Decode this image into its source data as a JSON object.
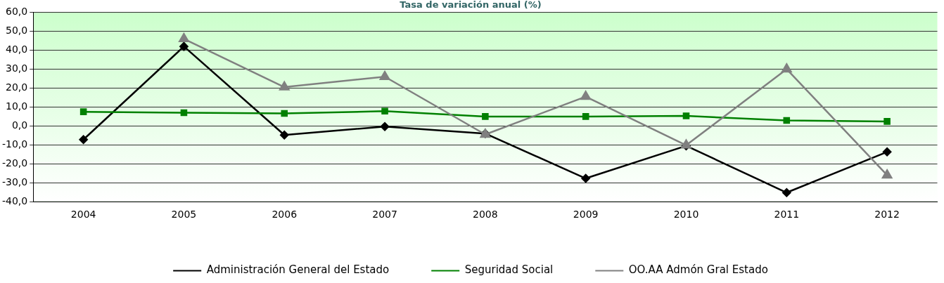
{
  "chart_data": {
    "type": "line",
    "title": "Tasa de variación anual (%)",
    "categories": [
      "2004",
      "2005",
      "2006",
      "2007",
      "2008",
      "2009",
      "2010",
      "2011",
      "2012"
    ],
    "series": [
      {
        "name": "Administración General del Estado",
        "color": "#000000",
        "marker": "diamond",
        "values": [
          -7.2,
          42.0,
          -4.8,
          -0.3,
          -4.0,
          -27.7,
          -10.5,
          -35.2,
          -13.7
        ]
      },
      {
        "name": "Seguridad Social",
        "color": "#008000",
        "marker": "square",
        "values": [
          7.5,
          7.0,
          6.6,
          7.8,
          5.0,
          5.0,
          5.3,
          2.9,
          2.4
        ]
      },
      {
        "name": "OO.AA Admón Gral Estado",
        "color": "#808080",
        "marker": "triangle",
        "values": [
          null,
          46.0,
          20.5,
          26.0,
          -4.5,
          15.5,
          -10.2,
          30.0,
          -26.0
        ]
      }
    ],
    "ylim": [
      -40,
      60
    ],
    "yticks": [
      {
        "value": -40,
        "label": "-40,0"
      },
      {
        "value": -30,
        "label": "-30,0"
      },
      {
        "value": -20,
        "label": "-20,0"
      },
      {
        "value": -10,
        "label": "-10,0"
      },
      {
        "value": 0,
        "label": "0,0"
      },
      {
        "value": 10,
        "label": "10,0"
      },
      {
        "value": 20,
        "label": "20,0"
      },
      {
        "value": 30,
        "label": "30,0"
      },
      {
        "value": 40,
        "label": "40,0"
      },
      {
        "value": 50,
        "label": "50,0"
      },
      {
        "value": 60,
        "label": "60,0"
      }
    ],
    "grid": "y",
    "legend": "bottom",
    "line_style": "solid"
  }
}
